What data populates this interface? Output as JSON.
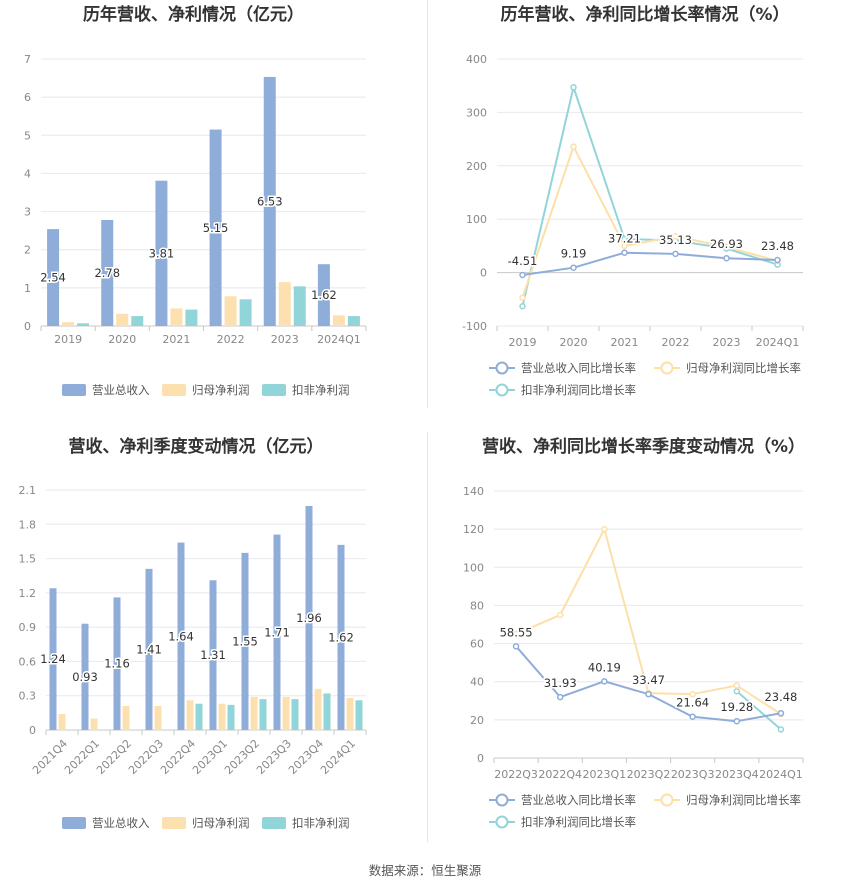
{
  "colors": {
    "revenue": "#8eadd9",
    "net_profit": "#fde0b0",
    "deducted_profit": "#92d5d9",
    "line_revenue": "#8eadd9",
    "line_net": "#fde0a8",
    "line_deducted": "#92d5d9"
  },
  "source": "数据来源：恒生聚源",
  "chart_data": [
    {
      "id": "annual-amounts",
      "type": "bar",
      "title": "历年营收、净利情况（亿元）",
      "categories": [
        "2019",
        "2020",
        "2021",
        "2022",
        "2023",
        "2024Q1"
      ],
      "ylim": [
        0,
        7
      ],
      "yticks": [
        0,
        1,
        2,
        3,
        4,
        5,
        6,
        7
      ],
      "grid": true,
      "legend": "bottom",
      "series": [
        {
          "name": "营业总收入",
          "values": [
            2.54,
            2.78,
            3.81,
            5.15,
            6.53,
            1.62
          ],
          "labels": [
            "2.54",
            "2.78",
            "3.81",
            "5.15",
            "6.53",
            "1.62"
          ]
        },
        {
          "name": "归母净利润",
          "values": [
            0.1,
            0.32,
            0.46,
            0.78,
            1.15,
            0.28
          ]
        },
        {
          "name": "扣非净利润",
          "values": [
            0.07,
            0.26,
            0.43,
            0.7,
            1.04,
            0.26
          ]
        }
      ]
    },
    {
      "id": "annual-growth",
      "type": "line",
      "title": "历年营收、净利同比增长率情况（%）",
      "categories": [
        "2019",
        "2020",
        "2021",
        "2022",
        "2023",
        "2024Q1"
      ],
      "ylim": [
        -100,
        400
      ],
      "yticks": [
        -100,
        0,
        100,
        200,
        300,
        400
      ],
      "grid": true,
      "legend": "bottom",
      "series": [
        {
          "name": "营业总收入同比增长率",
          "values": [
            -4.51,
            9.19,
            37.21,
            35.13,
            26.93,
            23.48
          ],
          "labels": [
            "-4.51",
            "9.19",
            "37.21",
            "35.13",
            "26.93",
            "23.48"
          ]
        },
        {
          "name": "归母净利润同比增长率",
          "values": [
            -47,
            236,
            50,
            68,
            48,
            22
          ]
        },
        {
          "name": "扣非净利润同比增长率",
          "values": [
            -63,
            347,
            63,
            60,
            45,
            15
          ]
        }
      ]
    },
    {
      "id": "quarterly-amounts",
      "type": "bar",
      "title": "营收、净利季度变动情况（亿元）",
      "categories": [
        "2021Q4",
        "2022Q1",
        "2022Q2",
        "2022Q3",
        "2022Q4",
        "2023Q1",
        "2023Q2",
        "2023Q3",
        "2023Q4",
        "2024Q1"
      ],
      "ylim": [
        0,
        2.1
      ],
      "yticks": [
        0,
        0.3,
        0.6,
        0.9,
        1.2,
        1.5,
        1.8,
        2.1
      ],
      "grid": true,
      "legend": "bottom",
      "series": [
        {
          "name": "营业总收入",
          "values": [
            1.24,
            0.93,
            1.16,
            1.41,
            1.64,
            1.31,
            1.55,
            1.71,
            1.96,
            1.62
          ],
          "labels": [
            "1.24",
            "0.93",
            "1.16",
            "1.41",
            "1.64",
            "1.31",
            "1.55",
            "1.71",
            "1.96",
            "1.62"
          ]
        },
        {
          "name": "归母净利润",
          "values": [
            0.14,
            0.1,
            0.21,
            0.21,
            0.26,
            0.23,
            0.29,
            0.29,
            0.36,
            0.28
          ]
        },
        {
          "name": "扣非净利润",
          "values": [
            0,
            0,
            0,
            0,
            0.23,
            0.22,
            0.27,
            0.27,
            0.32,
            0.26
          ]
        }
      ]
    },
    {
      "id": "quarterly-growth",
      "type": "line",
      "title": "营收、净利同比增长率季度变动情况（%）",
      "categories": [
        "2022Q3",
        "2022Q4",
        "2023Q1",
        "2023Q2",
        "2023Q3",
        "2023Q4",
        "2024Q1"
      ],
      "ylim": [
        0,
        140
      ],
      "yticks": [
        0,
        20,
        40,
        60,
        80,
        100,
        120,
        140
      ],
      "grid": true,
      "legend": "bottom",
      "series": [
        {
          "name": "营业总收入同比增长率",
          "values": [
            58.55,
            31.93,
            40.19,
            33.47,
            21.64,
            19.28,
            23.48
          ],
          "labels": [
            "58.55",
            "31.93",
            "40.19",
            "33.47",
            "21.64",
            "19.28",
            "23.48"
          ]
        },
        {
          "name": "归母净利润同比增长率",
          "values": [
            65,
            75,
            120,
            34,
            33.5,
            38,
            23
          ]
        },
        {
          "name": "扣非净利润同比增长率",
          "values": [
            null,
            null,
            null,
            null,
            null,
            35,
            15
          ]
        }
      ]
    }
  ]
}
